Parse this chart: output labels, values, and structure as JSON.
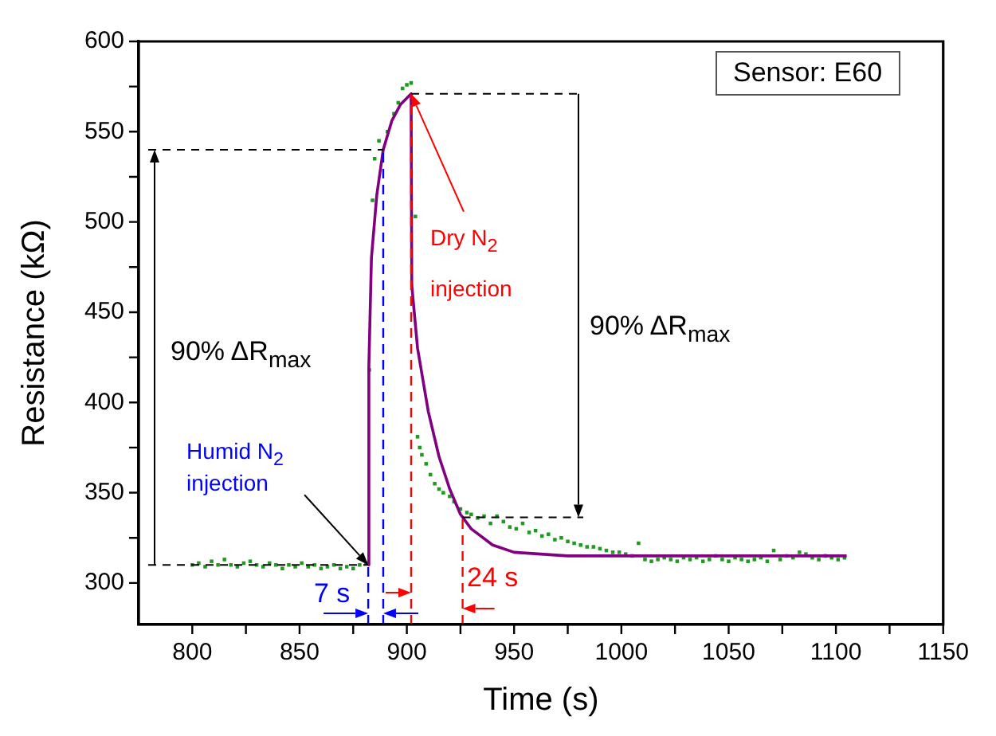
{
  "chart_data": {
    "type": "scatter",
    "xlabel": "Time (s)",
    "ylabel": "Resistance (kΩ)",
    "xlim": [
      775,
      1150
    ],
    "ylim": [
      277,
      600
    ],
    "xticks": [
      800,
      {
        "value": 825,
        "label": null
      },
      850,
      {
        "value": 875,
        "label": null
      },
      900,
      {
        "value": 925,
        "label": null
      },
      950,
      {
        "value": 975,
        "label": null
      },
      1000,
      {
        "value": 1025,
        "label": null
      },
      1050,
      {
        "value": 1075,
        "label": null
      },
      1100,
      {
        "value": 1125,
        "label": null
      },
      1150
    ],
    "yticks": [
      300,
      {
        "value": 325,
        "label": null
      },
      350,
      {
        "value": 375,
        "label": null
      },
      400,
      {
        "value": 425,
        "label": null
      },
      450,
      {
        "value": 475,
        "label": null
      },
      500,
      {
        "value": 525,
        "label": null
      },
      550,
      {
        "value": 575,
        "label": null
      },
      600
    ],
    "grid": false,
    "legend": false,
    "series": [
      {
        "type": "scatter",
        "color": "#1f9a1f",
        "marker": "square",
        "x": [
          800,
          803,
          806,
          809,
          812,
          815,
          818,
          821,
          824,
          827,
          830,
          833,
          836,
          839,
          842,
          845,
          848,
          851,
          854,
          857,
          860,
          863,
          866,
          869,
          872,
          875,
          878,
          881,
          882.5,
          884,
          885,
          887,
          891,
          894,
          896,
          898,
          900,
          902,
          904,
          905,
          906,
          907,
          909,
          911,
          913,
          915,
          917,
          920,
          922,
          925,
          928,
          930,
          933,
          936,
          939,
          942,
          945,
          948,
          951,
          954,
          957,
          960,
          963,
          966,
          969,
          972,
          975,
          978,
          981,
          984,
          987,
          990,
          993,
          996,
          999,
          1002,
          1005,
          1008,
          1011,
          1014,
          1017,
          1020,
          1023,
          1026,
          1029,
          1032,
          1035,
          1038,
          1041,
          1044,
          1047,
          1050,
          1053,
          1056,
          1059,
          1062,
          1065,
          1068,
          1071,
          1074,
          1077,
          1080,
          1083,
          1086,
          1089,
          1092,
          1095,
          1098,
          1101,
          1104
        ],
        "values": [
          310,
          311,
          309,
          312,
          310,
          313,
          310,
          309,
          311,
          312,
          310,
          309,
          311,
          310,
          308,
          310,
          309,
          311,
          309,
          310,
          308,
          309,
          310,
          308,
          309,
          308,
          310,
          311,
          418,
          512,
          535,
          545,
          550,
          560,
          566,
          574,
          576,
          577,
          503,
          381,
          375,
          371,
          366,
          360,
          355,
          352,
          350,
          348,
          345,
          341,
          339,
          338,
          336,
          337,
          333,
          337,
          334,
          331,
          330,
          333,
          328,
          329,
          326,
          327,
          324,
          325,
          323,
          322,
          321,
          320,
          320,
          319,
          318,
          317,
          317,
          316,
          315,
          322,
          313,
          312,
          313,
          314,
          313,
          312,
          314,
          313,
          314,
          312,
          313,
          315,
          313,
          312,
          314,
          313,
          312,
          313,
          314,
          312,
          318,
          313,
          315,
          314,
          317,
          316,
          314,
          313,
          315,
          314,
          313,
          314
        ]
      },
      {
        "type": "line",
        "color": "#800080",
        "marker": "none",
        "line_style": "solid",
        "x": [
          882,
          882.3,
          883.5,
          886,
          889,
          893,
          897,
          902,
          902.3,
          905,
          910,
          915,
          920,
          925,
          930,
          940,
          950,
          975,
          1000,
          1105
        ],
        "values": [
          310,
          420,
          480,
          515,
          540,
          556,
          565,
          571,
          465,
          430,
          395,
          370,
          352,
          338,
          330,
          321,
          317,
          315,
          315,
          315
        ]
      }
    ],
    "ref_lines": [
      {
        "axis": "x",
        "value": 882,
        "color": "#0000ff",
        "line_style": "dashed"
      },
      {
        "axis": "x",
        "value": 889,
        "color": "#0000ff",
        "line_style": "dashed"
      },
      {
        "axis": "x",
        "value": 902,
        "color": "#ff0000",
        "line_style": "dashed"
      },
      {
        "axis": "x",
        "value": 926,
        "color": "#ff0000",
        "line_style": "dashed"
      }
    ],
    "annotations": [
      "Sensor: E60",
      "90% ΔR$_{max}$",
      "90% ΔR$_{max}$",
      {
        "text": "Humid N$_{2}$ injection",
        "x": 882,
        "y": 310
      },
      {
        "text": "Dry N$_{2}$ injection",
        "x": 902,
        "y": 571
      },
      "7 s",
      "24 s"
    ]
  }
}
